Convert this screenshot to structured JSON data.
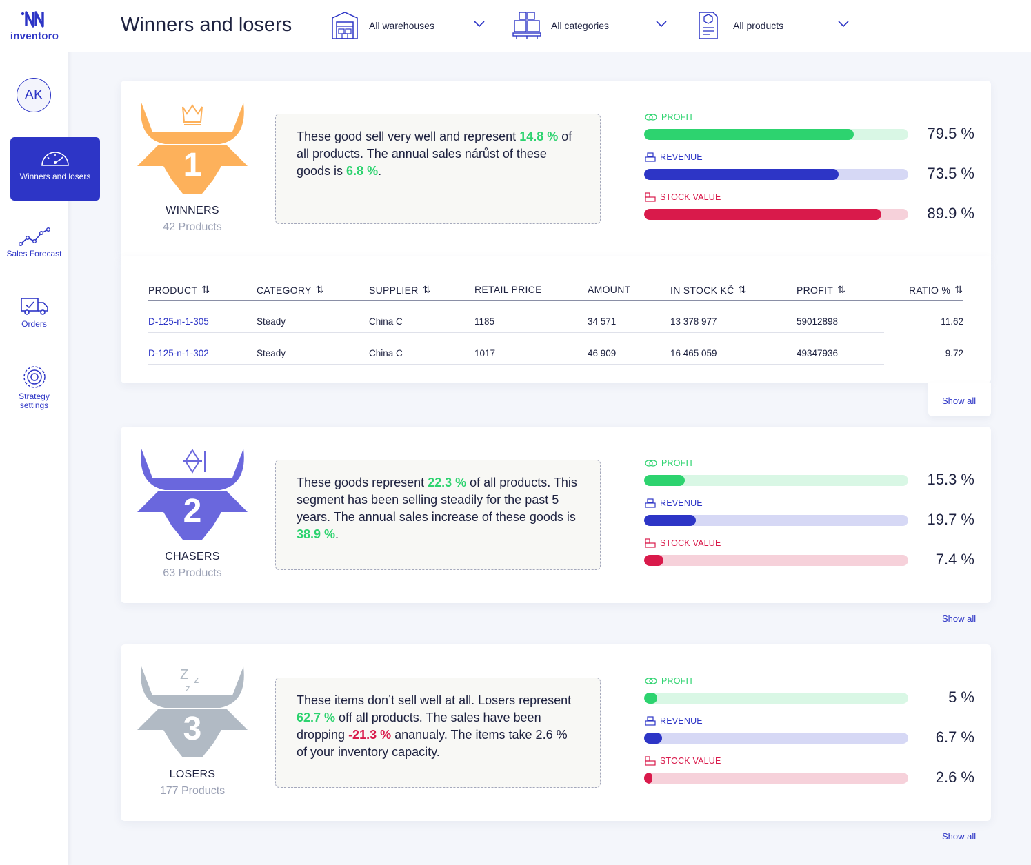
{
  "brand": {
    "name": "inventoro"
  },
  "user": {
    "initials": "AK"
  },
  "nav": [
    {
      "label": "Winners and losers",
      "active": true
    },
    {
      "label": "Sales Forecast"
    },
    {
      "label": "Orders"
    },
    {
      "label": "Strategy settings"
    }
  ],
  "header": {
    "title": "Winners and losers",
    "filters": [
      {
        "value": "All warehouses",
        "icon": "warehouse-icon"
      },
      {
        "value": "All categories",
        "icon": "boxes-icon"
      },
      {
        "value": "All products",
        "icon": "product-sheet-icon"
      }
    ]
  },
  "colors": {
    "accent": "#2d35c6",
    "profit": "#2dd36f",
    "revenue": "#2d35c6",
    "stock": "#d91a4b",
    "winners": "#fdb15b",
    "chasers": "#6a67dd",
    "losers": "#b1bac4"
  },
  "metric_labels": {
    "profit": "PROFIT",
    "revenue": "REVENUE",
    "stock": "STOCK VALUE"
  },
  "segments": [
    {
      "rank": "1",
      "name": "WINNERS",
      "count": "42 Products",
      "desc": {
        "p1": "These good sell very well and represent ",
        "v1": "14.8 %",
        "p2": " of all products. The annual sales nárůst of these goods is ",
        "v2": "6.8 %",
        "p3": "."
      },
      "metrics": {
        "profit": 79.5,
        "revenue": 73.5,
        "stock": 89.9
      },
      "metric_text": {
        "profit": "79.5 %",
        "revenue": "73.5 %",
        "stock": "89.9 %"
      }
    },
    {
      "rank": "2",
      "name": "CHASERS",
      "count": "63 Products",
      "desc": {
        "p1": "These goods represent ",
        "v1": "22.3 %",
        "p2": " of all products. This segment has been selling steadily for the past 5 years. The annual sales increase of these goods is ",
        "v2": "38.9 %",
        "p3": "."
      },
      "metrics": {
        "profit": 15.3,
        "revenue": 19.7,
        "stock": 7.4
      },
      "metric_text": {
        "profit": "15.3 %",
        "revenue": "19.7 %",
        "stock": "7.4 %"
      }
    },
    {
      "rank": "3",
      "name": "LOSERS",
      "count": "177 Products",
      "desc": {
        "p1": "These items don’t sell well at all. Losers represent ",
        "v1": "62.7 %",
        "p2": " off all products. The sales have been dropping ",
        "v2": "-21.3 %",
        "p3": " ananualy. The items take 2.6 % of your inventory capacity."
      },
      "metrics": {
        "profit": 5,
        "revenue": 6.7,
        "stock": 2.6
      },
      "metric_text": {
        "profit": "5 %",
        "revenue": "6.7 %",
        "stock": "2.6 %"
      }
    }
  ],
  "table": {
    "columns": [
      "PRODUCT",
      "CATEGORY",
      "SUPPLIER",
      "RETAIL PRICE",
      "AMOUNT",
      "IN STOCK KČ",
      "PROFIT",
      "RATIO %"
    ],
    "rows": [
      [
        "D-125-n-1-305",
        "Steady",
        "China C",
        "1185",
        "34 571",
        "13 378 977",
        "59012898",
        "11.62"
      ],
      [
        "D-125-n-1-302",
        "Steady",
        "China C",
        "1017",
        "46 909",
        "16 465 059",
        "49347936",
        "9.72"
      ]
    ]
  },
  "show_all": "Show all"
}
